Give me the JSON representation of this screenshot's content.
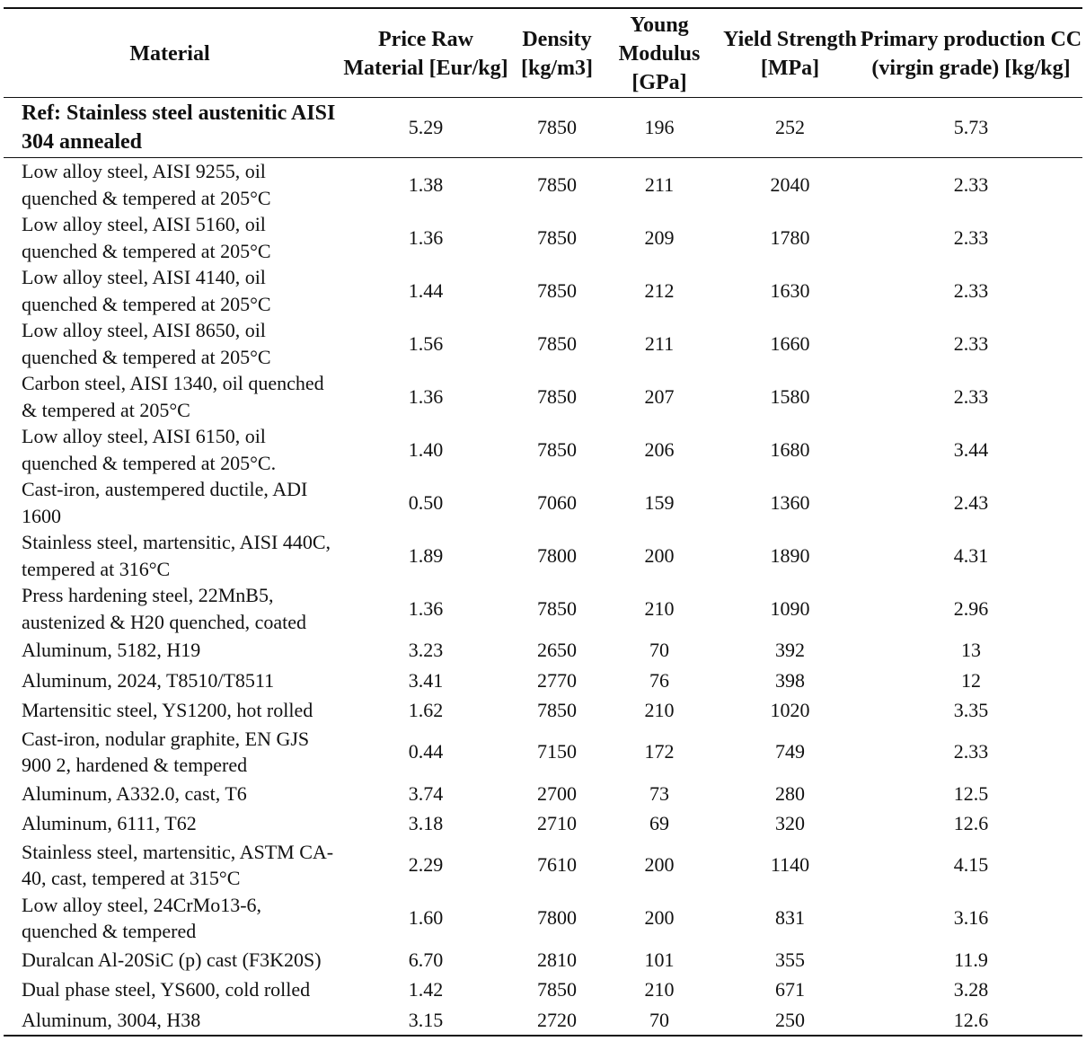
{
  "headers": {
    "material": "Material",
    "price": "Price Raw Material [Eur/kg]",
    "density": "Density [kg/m3]",
    "young": "Young Modulus [GPa]",
    "yield": "Yield Strength [MPa]",
    "cc": "Primary production CC (virgin grade) [kg/kg]"
  },
  "reference": {
    "material": "Ref: Stainless steel austenitic AISI 304 annealed",
    "price": "5.29",
    "density": "7850",
    "young": "196",
    "yield": "252",
    "cc": "5.73"
  },
  "rows": [
    {
      "material": "Low alloy steel, AISI 9255, oil quenched & tempered at 205°C",
      "price": "1.38",
      "density": "7850",
      "young": "211",
      "yield": "2040",
      "cc": "2.33"
    },
    {
      "material": "Low alloy steel, AISI 5160, oil quenched & tempered at 205°C",
      "price": "1.36",
      "density": "7850",
      "young": "209",
      "yield": "1780",
      "cc": "2.33"
    },
    {
      "material": "Low alloy steel, AISI 4140, oil quenched & tempered at 205°C",
      "price": "1.44",
      "density": "7850",
      "young": "212",
      "yield": "1630",
      "cc": "2.33"
    },
    {
      "material": "Low alloy steel, AISI 8650, oil quenched & tempered at 205°C",
      "price": "1.56",
      "density": "7850",
      "young": "211",
      "yield": "1660",
      "cc": "2.33"
    },
    {
      "material": "Carbon steel, AISI 1340, oil quenched & tempered at 205°C",
      "price": "1.36",
      "density": "7850",
      "young": "207",
      "yield": "1580",
      "cc": "2.33"
    },
    {
      "material": "Low alloy steel, AISI 6150, oil quenched & tempered at 205°C.",
      "price": "1.40",
      "density": "7850",
      "young": "206",
      "yield": "1680",
      "cc": "3.44"
    },
    {
      "material": "Cast-iron, austempered ductile, ADI 1600",
      "price": "0.50",
      "density": "7060",
      "young": "159",
      "yield": "1360",
      "cc": "2.43"
    },
    {
      "material": "Stainless steel, martensitic, AISI 440C, tempered at 316°C",
      "price": "1.89",
      "density": "7800",
      "young": "200",
      "yield": "1890",
      "cc": "4.31"
    },
    {
      "material": "Press hardening steel, 22MnB5, austenized & H20 quenched, coated",
      "price": "1.36",
      "density": "7850",
      "young": "210",
      "yield": "1090",
      "cc": "2.96"
    },
    {
      "material": "Aluminum, 5182, H19",
      "price": "3.23",
      "density": "2650",
      "young": "70",
      "yield": "392",
      "cc": "13"
    },
    {
      "material": "Aluminum, 2024, T8510/T8511",
      "price": "3.41",
      "density": "2770",
      "young": "76",
      "yield": "398",
      "cc": "12"
    },
    {
      "material": "Martensitic steel, YS1200, hot rolled",
      "price": "1.62",
      "density": "7850",
      "young": "210",
      "yield": "1020",
      "cc": "3.35"
    },
    {
      "material": "Cast-iron, nodular graphite, EN GJS 900 2, hardened & tempered",
      "price": "0.44",
      "density": "7150",
      "young": "172",
      "yield": "749",
      "cc": "2.33"
    },
    {
      "material": "Aluminum, A332.0, cast, T6",
      "price": "3.74",
      "density": "2700",
      "young": "73",
      "yield": "280",
      "cc": "12.5"
    },
    {
      "material": "Aluminum, 6111, T62",
      "price": "3.18",
      "density": "2710",
      "young": "69",
      "yield": "320",
      "cc": "12.6"
    },
    {
      "material": "Stainless steel, martensitic, ASTM CA-40, cast, tempered at 315°C",
      "price": "2.29",
      "density": "7610",
      "young": "200",
      "yield": "1140",
      "cc": "4.15"
    },
    {
      "material": "Low alloy steel, 24CrMo13-6, quenched & tempered",
      "price": "1.60",
      "density": "7800",
      "young": "200",
      "yield": "831",
      "cc": "3.16"
    },
    {
      "material": "Duralcan Al-20SiC (p) cast (F3K20S)",
      "price": "6.70",
      "density": "2810",
      "young": "101",
      "yield": "355",
      "cc": "11.9"
    },
    {
      "material": "Dual phase steel, YS600, cold rolled",
      "price": "1.42",
      "density": "7850",
      "young": "210",
      "yield": "671",
      "cc": "3.28"
    },
    {
      "material": "Aluminum, 3004, H38",
      "price": "3.15",
      "density": "2720",
      "young": "70",
      "yield": "250",
      "cc": "12.6"
    }
  ]
}
